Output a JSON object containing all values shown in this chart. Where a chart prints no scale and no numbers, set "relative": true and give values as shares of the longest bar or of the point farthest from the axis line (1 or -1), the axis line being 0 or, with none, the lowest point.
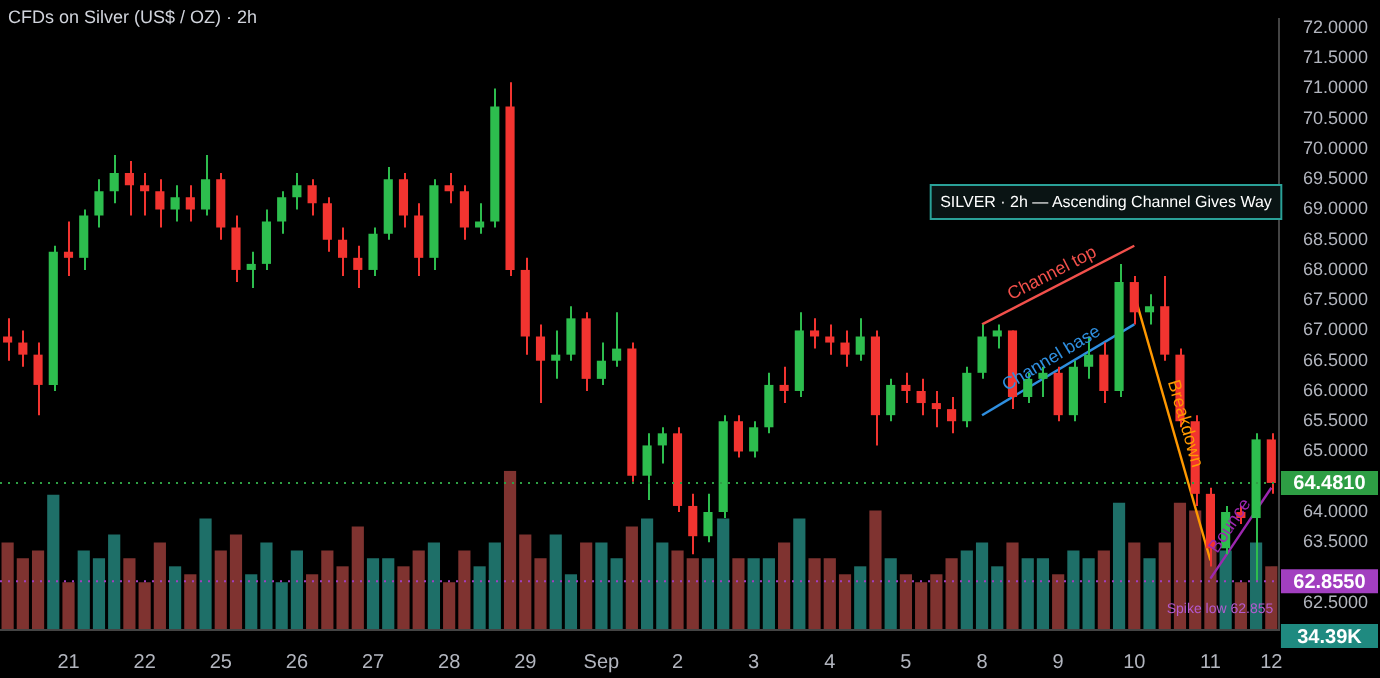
{
  "chart_data": [
    {
      "type": "candlestick",
      "title": "CFDs on Silver (US$ / OZ) · 2h",
      "categories": [
        null,
        null,
        null,
        null,
        "21",
        null,
        null,
        null,
        null,
        "22",
        null,
        null,
        null,
        null,
        "25",
        null,
        null,
        null,
        null,
        "26",
        null,
        null,
        null,
        null,
        "27",
        null,
        null,
        null,
        null,
        "28",
        null,
        null,
        null,
        null,
        "29",
        null,
        null,
        null,
        null,
        "Sep",
        null,
        null,
        null,
        null,
        "2",
        null,
        null,
        null,
        null,
        "3",
        null,
        null,
        null,
        null,
        "4",
        null,
        null,
        null,
        null,
        "5",
        null,
        null,
        null,
        null,
        "8",
        null,
        null,
        null,
        null,
        "9",
        null,
        null,
        null,
        null,
        "10",
        null,
        null,
        null,
        null,
        "11",
        null,
        null,
        null,
        "12"
      ],
      "series": [
        {
          "ohlc": [
            [
              66.9,
              67.2,
              66.5,
              66.8
            ],
            [
              66.8,
              67.0,
              66.4,
              66.6
            ],
            [
              66.6,
              66.8,
              65.6,
              66.1
            ],
            [
              66.1,
              68.4,
              66.0,
              68.3
            ],
            [
              68.3,
              68.8,
              67.9,
              68.2
            ],
            [
              68.2,
              69.0,
              68.0,
              68.9
            ],
            [
              68.9,
              69.5,
              68.7,
              69.3
            ],
            [
              69.3,
              69.9,
              69.1,
              69.6
            ],
            [
              69.6,
              69.8,
              68.9,
              69.4
            ],
            [
              69.4,
              69.6,
              68.9,
              69.3
            ],
            [
              69.3,
              69.5,
              68.7,
              69.0
            ],
            [
              69.0,
              69.4,
              68.8,
              69.2
            ],
            [
              69.2,
              69.4,
              68.8,
              69.0
            ],
            [
              69.0,
              69.9,
              68.9,
              69.5
            ],
            [
              69.5,
              69.6,
              68.5,
              68.7
            ],
            [
              68.7,
              68.9,
              67.8,
              68.0
            ],
            [
              68.0,
              68.3,
              67.7,
              68.1
            ],
            [
              68.1,
              69.0,
              68.0,
              68.8
            ],
            [
              68.8,
              69.3,
              68.6,
              69.2
            ],
            [
              69.2,
              69.6,
              69.0,
              69.4
            ],
            [
              69.4,
              69.5,
              68.9,
              69.1
            ],
            [
              69.1,
              69.2,
              68.3,
              68.5
            ],
            [
              68.5,
              68.7,
              67.9,
              68.2
            ],
            [
              68.2,
              68.4,
              67.7,
              68.0
            ],
            [
              68.0,
              68.7,
              67.9,
              68.6
            ],
            [
              68.6,
              69.7,
              68.5,
              69.5
            ],
            [
              69.5,
              69.6,
              68.7,
              68.9
            ],
            [
              68.9,
              69.1,
              67.9,
              68.2
            ],
            [
              68.2,
              69.5,
              68.0,
              69.4
            ],
            [
              69.4,
              69.6,
              69.1,
              69.3
            ],
            [
              69.3,
              69.4,
              68.5,
              68.7
            ],
            [
              68.7,
              69.1,
              68.6,
              68.8
            ],
            [
              68.8,
              71.0,
              68.7,
              70.7
            ],
            [
              70.7,
              71.1,
              67.9,
              68.0
            ],
            [
              68.0,
              68.2,
              66.6,
              66.9
            ],
            [
              66.9,
              67.1,
              65.8,
              66.5
            ],
            [
              66.5,
              67.0,
              66.2,
              66.6
            ],
            [
              66.6,
              67.4,
              66.5,
              67.2
            ],
            [
              67.2,
              67.3,
              66.0,
              66.2
            ],
            [
              66.2,
              66.8,
              66.1,
              66.5
            ],
            [
              66.5,
              67.3,
              66.4,
              66.7
            ],
            [
              66.7,
              66.8,
              64.5,
              64.6
            ],
            [
              64.6,
              65.3,
              64.2,
              65.1
            ],
            [
              65.1,
              65.4,
              64.8,
              65.3
            ],
            [
              65.3,
              65.4,
              64.0,
              64.1
            ],
            [
              64.1,
              64.3,
              63.3,
              63.6
            ],
            [
              63.6,
              64.3,
              63.5,
              64.0
            ],
            [
              64.0,
              65.6,
              63.9,
              65.5
            ],
            [
              65.5,
              65.6,
              64.9,
              65.0
            ],
            [
              65.0,
              65.5,
              64.9,
              65.4
            ],
            [
              65.4,
              66.3,
              65.3,
              66.1
            ],
            [
              66.1,
              66.4,
              65.8,
              66.0
            ],
            [
              66.0,
              67.3,
              65.9,
              67.0
            ],
            [
              67.0,
              67.2,
              66.7,
              66.9
            ],
            [
              66.9,
              67.1,
              66.6,
              66.8
            ],
            [
              66.8,
              67.0,
              66.4,
              66.6
            ],
            [
              66.6,
              67.2,
              66.5,
              66.9
            ],
            [
              66.9,
              67.0,
              65.1,
              65.6
            ],
            [
              65.6,
              66.2,
              65.5,
              66.1
            ],
            [
              66.1,
              66.3,
              65.8,
              66.0
            ],
            [
              66.0,
              66.2,
              65.6,
              65.8
            ],
            [
              65.8,
              66.0,
              65.4,
              65.7
            ],
            [
              65.7,
              65.9,
              65.3,
              65.5
            ],
            [
              65.5,
              66.4,
              65.4,
              66.3
            ],
            [
              66.3,
              67.1,
              66.2,
              66.9
            ],
            [
              66.9,
              67.1,
              66.7,
              67.0
            ],
            [
              67.0,
              67.0,
              65.7,
              65.9
            ],
            [
              65.9,
              66.3,
              65.8,
              66.2
            ],
            [
              66.2,
              66.4,
              65.9,
              66.3
            ],
            [
              66.3,
              66.4,
              65.5,
              65.6
            ],
            [
              65.6,
              66.5,
              65.5,
              66.4
            ],
            [
              66.4,
              66.9,
              66.2,
              66.6
            ],
            [
              66.6,
              66.8,
              65.8,
              66.0
            ],
            [
              66.0,
              68.1,
              65.9,
              67.8
            ],
            [
              67.8,
              67.9,
              67.1,
              67.3
            ],
            [
              67.3,
              67.6,
              67.1,
              67.4
            ],
            [
              67.4,
              67.9,
              66.5,
              66.6
            ],
            [
              66.6,
              66.7,
              65.4,
              65.5
            ],
            [
              65.5,
              65.6,
              64.1,
              64.3
            ],
            [
              64.3,
              64.4,
              63.1,
              63.4
            ],
            [
              63.4,
              64.1,
              63.3,
              64.0
            ],
            [
              64.0,
              64.1,
              63.8,
              63.9
            ],
            [
              63.9,
              65.3,
              62.855,
              65.2
            ],
            [
              65.2,
              65.3,
              64.3,
              64.481
            ]
          ],
          "colors": [
            "#f23430",
            "#f23430",
            "#f23430",
            "#2dbd4e",
            "#f23430",
            "#2dbd4e",
            "#2dbd4e",
            "#2dbd4e",
            "#f23430",
            "#f23430",
            "#f23430",
            "#2dbd4e",
            "#f23430",
            "#2dbd4e",
            "#f23430",
            "#f23430",
            "#2dbd4e",
            "#2dbd4e",
            "#2dbd4e",
            "#2dbd4e",
            "#f23430",
            "#f23430",
            "#f23430",
            "#f23430",
            "#2dbd4e",
            "#2dbd4e",
            "#f23430",
            "#f23430",
            "#2dbd4e",
            "#f23430",
            "#f23430",
            "#2dbd4e",
            "#2dbd4e",
            "#f23430",
            "#f23430",
            "#f23430",
            "#2dbd4e",
            "#2dbd4e",
            "#f23430",
            "#2dbd4e",
            "#2dbd4e",
            "#f23430",
            "#2dbd4e",
            "#2dbd4e",
            "#f23430",
            "#f23430",
            "#2dbd4e",
            "#2dbd4e",
            "#f23430",
            "#2dbd4e",
            "#2dbd4e",
            "#f23430",
            "#2dbd4e",
            "#f23430",
            "#f23430",
            "#f23430",
            "#2dbd4e",
            "#f23430",
            "#2dbd4e",
            "#f23430",
            "#f23430",
            "#f23430",
            "#f23430",
            "#2dbd4e",
            "#2dbd4e",
            "#2dbd4e",
            "#f23430",
            "#2dbd4e",
            "#2dbd4e",
            "#f23430",
            "#2dbd4e",
            "#2dbd4e",
            "#f23430",
            "#2dbd4e",
            "#f23430",
            "#2dbd4e",
            "#f23430",
            "#f23430",
            "#f23430",
            "#f23430",
            "#2dbd4e",
            "#f23430",
            "#2dbd4e",
            "#f23430"
          ]
        },
        {
          "type": "line",
          "name": "Channel top",
          "color": "#f2504b",
          "x": [
            "8",
            "10"
          ],
          "values": [
            67.1,
            68.4
          ]
        },
        {
          "type": "line",
          "name": "Channel base",
          "color": "#2f8fe0",
          "x": [
            "8",
            "10"
          ],
          "values": [
            65.6,
            67.1
          ]
        },
        {
          "type": "line",
          "name": "Breakdown",
          "color": "#ff9800",
          "x": [
            "10",
            "11"
          ],
          "values": [
            67.6,
            63.2
          ]
        },
        {
          "type": "line",
          "name": "Bounce",
          "color": "#9c27b0",
          "x": [
            "11",
            "12"
          ],
          "values": [
            62.9,
            64.4
          ]
        }
      ],
      "ylim": [
        62.05,
        72.15
      ],
      "yticks": [
        {
          "value": 62.5,
          "label": "62.5000"
        },
        {
          "value": 63.5,
          "label": "63.5000"
        },
        {
          "value": 64,
          "label": "64.0000"
        },
        {
          "value": 65,
          "label": "65.0000"
        },
        {
          "value": 65.5,
          "label": "65.5000"
        },
        {
          "value": 66,
          "label": "66.0000"
        },
        {
          "value": 66.5,
          "label": "66.5000"
        },
        {
          "value": 67,
          "label": "67.0000"
        },
        {
          "value": 67.5,
          "label": "67.5000"
        },
        {
          "value": 68,
          "label": "68.0000"
        },
        {
          "value": 68.5,
          "label": "68.5000"
        },
        {
          "value": 69,
          "label": "69.0000"
        },
        {
          "value": 69.5,
          "label": "69.5000"
        },
        {
          "value": 70,
          "label": "70.0000"
        },
        {
          "value": 70.5,
          "label": "70.5000"
        },
        {
          "value": 71,
          "label": "71.0000"
        },
        {
          "value": 71.5,
          "label": "71.5000"
        },
        {
          "value": 72,
          "label": "72.0000"
        }
      ],
      "ref_lines": [
        {
          "axis": "y",
          "value": 64.481,
          "label": "64.4810",
          "color": "#2e9e44",
          "line_style": "dotted"
        },
        {
          "axis": "y",
          "value": 62.855,
          "label": "62.8550",
          "color": "#a23fc0",
          "line_style": "dotted"
        }
      ],
      "annotations": [
        "SILVER · 2h — Ascending Channel Gives Way",
        "Spike low 62.855"
      ]
    },
    {
      "type": "bar",
      "relative": true,
      "categories": [
        null,
        null,
        null,
        null,
        null,
        null,
        null,
        null,
        null,
        null,
        null,
        null,
        null,
        null,
        null,
        null,
        null,
        null,
        null,
        null,
        null,
        null,
        null,
        null,
        null,
        null,
        null,
        null,
        null,
        null,
        null,
        null,
        null,
        null,
        null,
        null,
        null,
        null,
        null,
        null,
        null,
        null,
        null,
        null,
        null,
        null,
        null,
        null,
        null,
        null,
        null,
        null,
        null,
        null,
        null,
        null,
        null,
        null,
        null,
        null,
        null,
        null,
        null,
        null,
        null,
        null,
        null,
        null,
        null,
        null,
        null,
        null,
        null,
        null,
        null,
        null,
        null,
        null,
        null,
        null,
        null,
        null,
        null,
        null
      ],
      "values": [
        0.55,
        0.45,
        0.5,
        0.85,
        0.3,
        0.5,
        0.45,
        0.6,
        0.45,
        0.3,
        0.55,
        0.4,
        0.35,
        0.7,
        0.5,
        0.6,
        0.35,
        0.55,
        0.3,
        0.5,
        0.35,
        0.5,
        0.4,
        0.65,
        0.45,
        0.45,
        0.4,
        0.5,
        0.55,
        0.3,
        0.5,
        0.4,
        0.55,
        1.0,
        0.6,
        0.45,
        0.6,
        0.35,
        0.55,
        0.55,
        0.45,
        0.65,
        0.7,
        0.55,
        0.5,
        0.45,
        0.45,
        0.7,
        0.45,
        0.45,
        0.45,
        0.55,
        0.7,
        0.45,
        0.45,
        0.35,
        0.4,
        0.75,
        0.45,
        0.35,
        0.3,
        0.35,
        0.45,
        0.5,
        0.55,
        0.4,
        0.55,
        0.45,
        0.45,
        0.35,
        0.5,
        0.45,
        0.5,
        0.8,
        0.55,
        0.45,
        0.55,
        0.8,
        0.75,
        0.55,
        0.5,
        0.3,
        0.55,
        0.4
      ],
      "colors": [
        "#7f3330",
        "#7f3330",
        "#7f3330",
        "#1e6f68",
        "#7f3330",
        "#1e6f68",
        "#1e6f68",
        "#1e6f68",
        "#7f3330",
        "#7f3330",
        "#7f3330",
        "#1e6f68",
        "#7f3330",
        "#1e6f68",
        "#7f3330",
        "#7f3330",
        "#1e6f68",
        "#1e6f68",
        "#1e6f68",
        "#1e6f68",
        "#7f3330",
        "#7f3330",
        "#7f3330",
        "#7f3330",
        "#1e6f68",
        "#1e6f68",
        "#7f3330",
        "#7f3330",
        "#1e6f68",
        "#7f3330",
        "#7f3330",
        "#1e6f68",
        "#1e6f68",
        "#7f3330",
        "#7f3330",
        "#7f3330",
        "#1e6f68",
        "#1e6f68",
        "#7f3330",
        "#1e6f68",
        "#1e6f68",
        "#7f3330",
        "#1e6f68",
        "#1e6f68",
        "#7f3330",
        "#7f3330",
        "#1e6f68",
        "#1e6f68",
        "#7f3330",
        "#1e6f68",
        "#1e6f68",
        "#7f3330",
        "#1e6f68",
        "#7f3330",
        "#7f3330",
        "#7f3330",
        "#1e6f68",
        "#7f3330",
        "#1e6f68",
        "#7f3330",
        "#7f3330",
        "#7f3330",
        "#7f3330",
        "#1e6f68",
        "#1e6f68",
        "#1e6f68",
        "#7f3330",
        "#1e6f68",
        "#1e6f68",
        "#7f3330",
        "#1e6f68",
        "#1e6f68",
        "#7f3330",
        "#1e6f68",
        "#7f3330",
        "#1e6f68",
        "#7f3330",
        "#7f3330",
        "#7f3330",
        "#7f3330",
        "#1e6f68",
        "#7f3330",
        "#1e6f68",
        "#7f3330"
      ],
      "annotations": [
        "34.39K"
      ]
    }
  ]
}
